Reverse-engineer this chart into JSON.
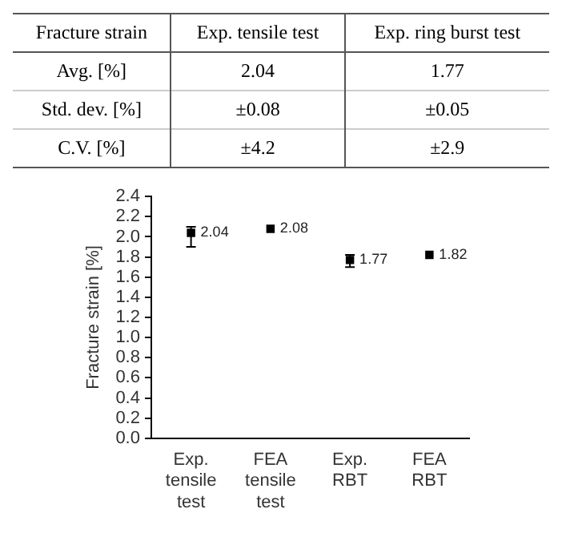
{
  "chart_data": [
    {
      "type": "other",
      "annotations": [
        "Fracture strain",
        "Exp. tensile test",
        "Exp. ring burst test",
        "Avg. [%]",
        "2.04",
        "1.77",
        "Std. dev. [%]",
        "±0.08",
        "±0.05",
        "C.V. [%]",
        "±4.2",
        "±2.9"
      ]
    },
    {
      "type": "scatter",
      "ylabel": "Fracture strain [%]",
      "categories": [
        "Exp. tensile test",
        "FEA tensile test",
        "Exp. RBT",
        "FEA RBT"
      ],
      "values": [
        2.04,
        2.08,
        1.77,
        1.82
      ],
      "errors": [
        [
          1.9,
          2.1
        ],
        null,
        [
          1.7,
          1.82
        ],
        null
      ],
      "color": "#000000",
      "marker": "square",
      "data_labels": true,
      "grid": false,
      "legend": false,
      "ylim": [
        0,
        2.4
      ],
      "yticks": [
        {
          "value": 0,
          "label": "0.0"
        },
        0.2,
        0.4,
        0.6,
        0.8,
        {
          "value": 1,
          "label": "1.0"
        },
        1.2,
        1.4,
        1.6,
        1.8,
        {
          "value": 2,
          "label": "2.0"
        },
        2.2,
        2.4
      ]
    }
  ]
}
